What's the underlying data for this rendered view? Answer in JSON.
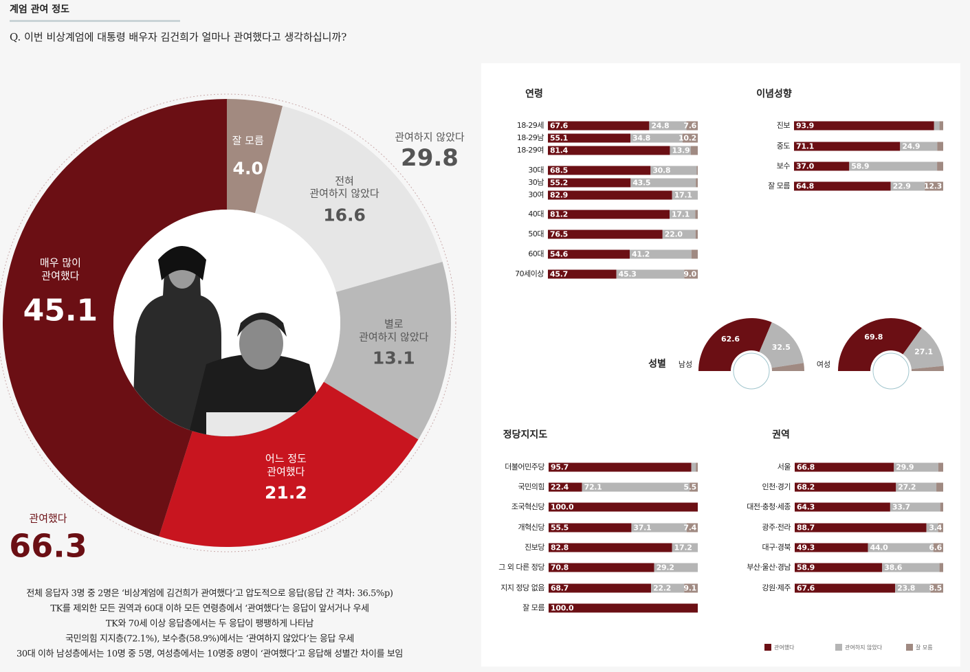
{
  "header": {
    "title": "계엄 관여 정도",
    "question": "Q. 이번 비상계엄에 대통령 배우자 김건희가 얼마나 관여했다고 생각하십니까?"
  },
  "legend": [
    {
      "name": "관여했다",
      "color": "#6b0f14"
    },
    {
      "name": "관여하지 않았다",
      "color": "#b5b5b5"
    },
    {
      "name": "잘 모름",
      "color": "#a08a82"
    }
  ],
  "chart_data": [
    {
      "type": "donut",
      "categories": [
        "잘 모름",
        "전혀\n관여하지 않았다",
        "별로\n관여하지 않았다",
        "어느 정도\n관여했다",
        "매우 많이\n관여했다"
      ],
      "values": [
        4.0,
        16.6,
        13.1,
        21.2,
        45.1
      ],
      "value_labels": [
        "4.0",
        "16.6",
        "13.1",
        "21.2",
        "45.1"
      ],
      "colors": [
        "#a28a80",
        "#e6e6e6",
        "#b9b9b9",
        "#c8151f",
        "#6b0f14"
      ],
      "annotations": [
        {
          "label": "관여하지 않았다",
          "value": 29.8
        },
        {
          "label": "관여했다",
          "value": 66.3
        }
      ]
    },
    {
      "type": "stacked_bar",
      "title": "연령",
      "categories": [
        "18-29세",
        "18-29남",
        "18-29여",
        "30대",
        "30남",
        "30여",
        "40대",
        "50대",
        "60대",
        "70세이상"
      ],
      "series": [
        {
          "values": [
            67.6,
            55.1,
            81.4,
            68.5,
            55.2,
            82.9,
            81.2,
            76.5,
            54.6,
            45.7
          ],
          "value_labels": [
            "67.6",
            "55.1",
            "81.4",
            "68.5",
            "55.2",
            "82.9",
            "81.2",
            "76.5",
            "54.6",
            "45.7"
          ]
        },
        {
          "values": [
            24.8,
            34.8,
            13.9,
            30.8,
            43.5,
            17.1,
            17.1,
            22.0,
            41.2,
            45.3
          ],
          "value_labels": [
            "24.8",
            "34.8",
            "13.9",
            "30.8",
            "43.5",
            "17.1",
            "17.1",
            "22.0",
            "41.2",
            "45.3"
          ]
        },
        {
          "values": [
            7.6,
            10.2,
            4.7,
            0.7,
            1.3,
            0,
            1.7,
            1.5,
            4.2,
            9.0
          ],
          "value_labels": [
            "7.6",
            "10.2",
            null,
            null,
            null,
            null,
            null,
            null,
            null,
            "9.0"
          ]
        }
      ]
    },
    {
      "type": "stacked_bar",
      "title": "이념성향",
      "categories": [
        "진보",
        "중도",
        "보수",
        "잘 모름"
      ],
      "series": [
        {
          "values": [
            93.9,
            71.1,
            37.0,
            64.8
          ],
          "value_labels": [
            "93.9",
            "71.1",
            "37.0",
            "64.8"
          ]
        },
        {
          "values": [
            3.6,
            24.9,
            58.9,
            22.9
          ],
          "value_labels": [
            null,
            "24.9",
            "58.9",
            "22.9"
          ]
        },
        {
          "values": [
            2.5,
            4.0,
            4.1,
            12.3
          ],
          "value_labels": [
            null,
            null,
            null,
            "12.3"
          ]
        }
      ]
    },
    {
      "type": "half_donut",
      "title": "성별",
      "categories": [
        "남성",
        "여성"
      ],
      "series": [
        {
          "values": [
            62.6,
            69.8
          ],
          "value_labels": [
            "62.6",
            "69.8"
          ]
        },
        {
          "values": [
            32.5,
            27.1
          ],
          "value_labels": [
            "32.5",
            "27.1"
          ]
        },
        {
          "values": [
            4.9,
            3.1
          ],
          "value_labels": [
            null,
            null
          ]
        }
      ]
    },
    {
      "type": "stacked_bar",
      "title": "정당지지도",
      "categories": [
        "더불어민주당",
        "국민의힘",
        "조국혁신당",
        "개혁신당",
        "진보당",
        "그 외 다른 정당",
        "지지 정당 없음",
        "잘 모름"
      ],
      "series": [
        {
          "values": [
            95.7,
            22.4,
            100.0,
            55.5,
            82.8,
            70.8,
            68.7,
            100.0
          ],
          "value_labels": [
            "95.7",
            "22.4",
            "100.0",
            "55.5",
            "82.8",
            "70.8",
            "68.7",
            "100.0"
          ]
        },
        {
          "values": [
            3.0,
            72.1,
            0,
            37.1,
            17.2,
            29.2,
            22.2,
            0
          ],
          "value_labels": [
            null,
            "72.1",
            null,
            "37.1",
            "17.2",
            "29.2",
            "22.2",
            null
          ]
        },
        {
          "values": [
            1.3,
            5.5,
            0,
            7.4,
            0,
            0,
            9.1,
            0
          ],
          "value_labels": [
            null,
            "5.5",
            null,
            "7.4",
            null,
            null,
            "9.1",
            null
          ]
        }
      ]
    },
    {
      "type": "stacked_bar",
      "title": "권역",
      "categories": [
        "서울",
        "인천·경기",
        "대전·충청·세종",
        "광주·전라",
        "대구·경북",
        "부산·울산·경남",
        "강원·제주"
      ],
      "series": [
        {
          "values": [
            66.8,
            68.2,
            64.3,
            88.7,
            49.3,
            58.9,
            67.6
          ],
          "value_labels": [
            "66.8",
            "68.2",
            "64.3",
            "88.7",
            "49.3",
            "58.9",
            "67.6"
          ]
        },
        {
          "values": [
            29.9,
            27.2,
            33.7,
            7.9,
            44.0,
            38.6,
            23.8
          ],
          "value_labels": [
            "29.9",
            "27.2",
            "33.7",
            null,
            "44.0",
            "38.6",
            "23.8"
          ]
        },
        {
          "values": [
            3.3,
            4.6,
            2.0,
            3.4,
            6.6,
            2.5,
            8.5
          ],
          "value_labels": [
            null,
            null,
            null,
            "3.4",
            "6.6",
            null,
            "8.5"
          ]
        }
      ]
    }
  ],
  "notes": [
    "전체 응답자 3명 중 2명은 ‘비상계엄에 김건희가 관여했다’고 압도적으로 응답(응답 간 격차: 36.5%p)",
    "TK를 제외한 모든 권역과 60대 이하 모든 연령층에서 ‘관여했다’는 응답이 앞서거나 우세",
    "TK와 70세 이상 응답층에서는 두 응답이 팽팽하게 나타남",
    "국민의힘 지지층(72.1%), 보수층(58.9%)에서는 ‘관여하지 않았다’는 응답 우세",
    "30대 이하 남성층에서는 10명 중 5명, 여성층에서는 10명중 8명이 ‘관여했다’고 응답해 성별간 차이를 보임"
  ]
}
